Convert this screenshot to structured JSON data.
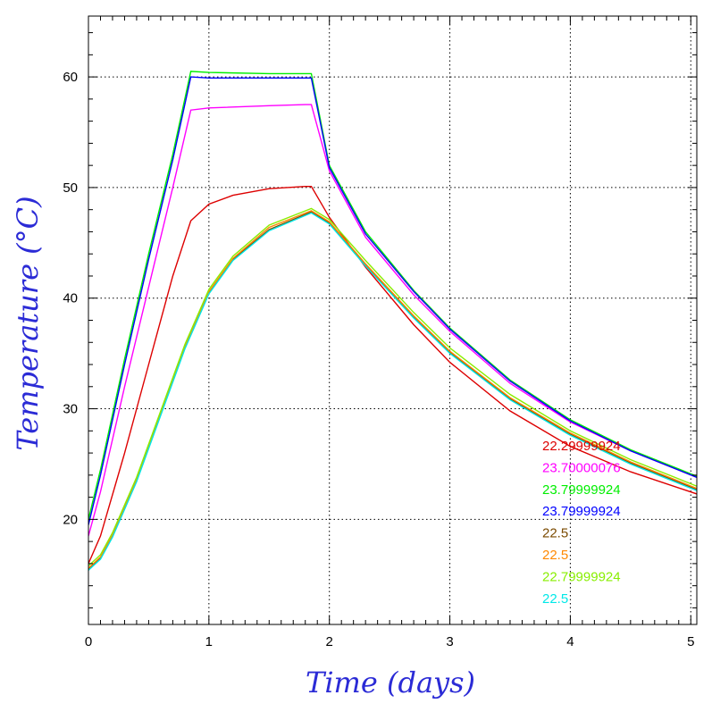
{
  "chart_data": {
    "type": "line",
    "title": "",
    "xlabel": "Time (days)",
    "ylabel": "Temperature (°C)",
    "xlim": [
      0,
      5.05
    ],
    "ylim": [
      10.5,
      65.5
    ],
    "grid": true,
    "legend_position": "bottom-right",
    "x_ticks": [
      0,
      1,
      2,
      3,
      4,
      5
    ],
    "x_tick_labels": [
      "0",
      "1",
      "2",
      "3",
      "4",
      "5"
    ],
    "y_ticks": [
      20,
      30,
      40,
      50,
      60
    ],
    "y_tick_labels": [
      "20",
      "30",
      "40",
      "50",
      "60"
    ],
    "series": [
      {
        "name": "22.29999924",
        "color": "#dd0000",
        "x": [
          0,
          0.1,
          0.3,
          0.5,
          0.7,
          0.85,
          1.0,
          1.2,
          1.5,
          1.8,
          1.85,
          2.0,
          2.3,
          2.7,
          3.0,
          3.5,
          4.0,
          4.5,
          5.05
        ],
        "y": [
          16,
          18.5,
          26,
          34,
          42,
          47,
          48.5,
          49.3,
          49.9,
          50.1,
          50.1,
          47.3,
          42.8,
          37.6,
          34.2,
          29.8,
          26.6,
          24.3,
          22.3
        ]
      },
      {
        "name": "23.70000076",
        "color": "#ff00ff",
        "x": [
          0,
          0.1,
          0.3,
          0.5,
          0.7,
          0.85,
          1.0,
          1.5,
          1.8,
          1.85,
          2.0,
          2.3,
          2.7,
          3.0,
          3.5,
          4.0,
          4.5,
          5.05
        ],
        "y": [
          18.5,
          22.5,
          32,
          41,
          50,
          57,
          57.2,
          57.4,
          57.5,
          57.5,
          51.5,
          45.5,
          40.3,
          37,
          32.3,
          28.8,
          26.2,
          23.8
        ]
      },
      {
        "name": "23.79999924",
        "color": "#00ee00",
        "x": [
          0,
          0.1,
          0.3,
          0.5,
          0.7,
          0.85,
          1.0,
          1.5,
          1.85,
          2.0,
          2.3,
          2.7,
          3.0,
          3.5,
          4.0,
          4.5,
          5.05
        ],
        "y": [
          20,
          24.5,
          34.5,
          44,
          53,
          60.5,
          60.4,
          60.3,
          60.3,
          52,
          46,
          40.7,
          37.3,
          32.6,
          29,
          26.3,
          23.9
        ]
      },
      {
        "name": "23.79999924",
        "color": "#0000ff",
        "x": [
          0,
          0.1,
          0.3,
          0.5,
          0.7,
          0.85,
          1.0,
          1.5,
          1.85,
          2.0,
          2.3,
          2.7,
          3.0,
          3.5,
          4.0,
          4.5,
          5.05
        ],
        "y": [
          19.5,
          24,
          34,
          43.5,
          52.5,
          60,
          59.9,
          59.9,
          59.9,
          51.8,
          45.8,
          40.6,
          37.2,
          32.5,
          28.9,
          26.2,
          23.8
        ]
      },
      {
        "name": "22.5",
        "color": "#7a4a00",
        "x": [
          0,
          0.1,
          0.2,
          0.4,
          0.6,
          0.8,
          1.0,
          1.2,
          1.5,
          1.85,
          2.0,
          2.3,
          2.7,
          3.0,
          3.5,
          4.0,
          4.5,
          5.05
        ],
        "y": [
          15.5,
          16.5,
          18.5,
          23.5,
          29.5,
          35.5,
          40.5,
          43.5,
          46.2,
          47.8,
          46.8,
          43,
          38.3,
          35.1,
          30.9,
          27.7,
          25.1,
          22.7
        ]
      },
      {
        "name": "22.5",
        "color": "#ff8800",
        "x": [
          0,
          0.1,
          0.2,
          0.4,
          0.6,
          0.8,
          1.0,
          1.2,
          1.5,
          1.85,
          2.0,
          2.3,
          2.7,
          3.0,
          3.5,
          4.0,
          4.5,
          5.05
        ],
        "y": [
          15.6,
          16.6,
          18.6,
          23.6,
          29.6,
          35.6,
          40.6,
          43.6,
          46.4,
          47.9,
          46.9,
          43.1,
          38.4,
          35.2,
          31,
          27.8,
          25.2,
          22.8
        ]
      },
      {
        "name": "22.79999924",
        "color": "#88ee00",
        "x": [
          0,
          0.1,
          0.2,
          0.4,
          0.6,
          0.8,
          1.0,
          1.2,
          1.5,
          1.85,
          2.0,
          2.3,
          2.7,
          3.0,
          3.5,
          4.0,
          4.5,
          5.05
        ],
        "y": [
          15.8,
          16.8,
          18.8,
          23.8,
          29.8,
          35.8,
          40.8,
          43.8,
          46.6,
          48.1,
          47.1,
          43.4,
          38.7,
          35.5,
          31.3,
          28,
          25.4,
          23
        ]
      },
      {
        "name": "22.5",
        "color": "#00e8e8",
        "x": [
          0,
          0.1,
          0.2,
          0.4,
          0.6,
          0.8,
          1.0,
          1.2,
          1.5,
          1.85,
          2.0,
          2.3,
          2.7,
          3.0,
          3.5,
          4.0,
          4.5,
          5.05
        ],
        "y": [
          15.4,
          16.4,
          18.4,
          23.4,
          29.4,
          35.4,
          40.4,
          43.4,
          46.1,
          47.7,
          46.7,
          42.9,
          38.2,
          35,
          30.8,
          27.6,
          25,
          22.6
        ]
      }
    ]
  }
}
